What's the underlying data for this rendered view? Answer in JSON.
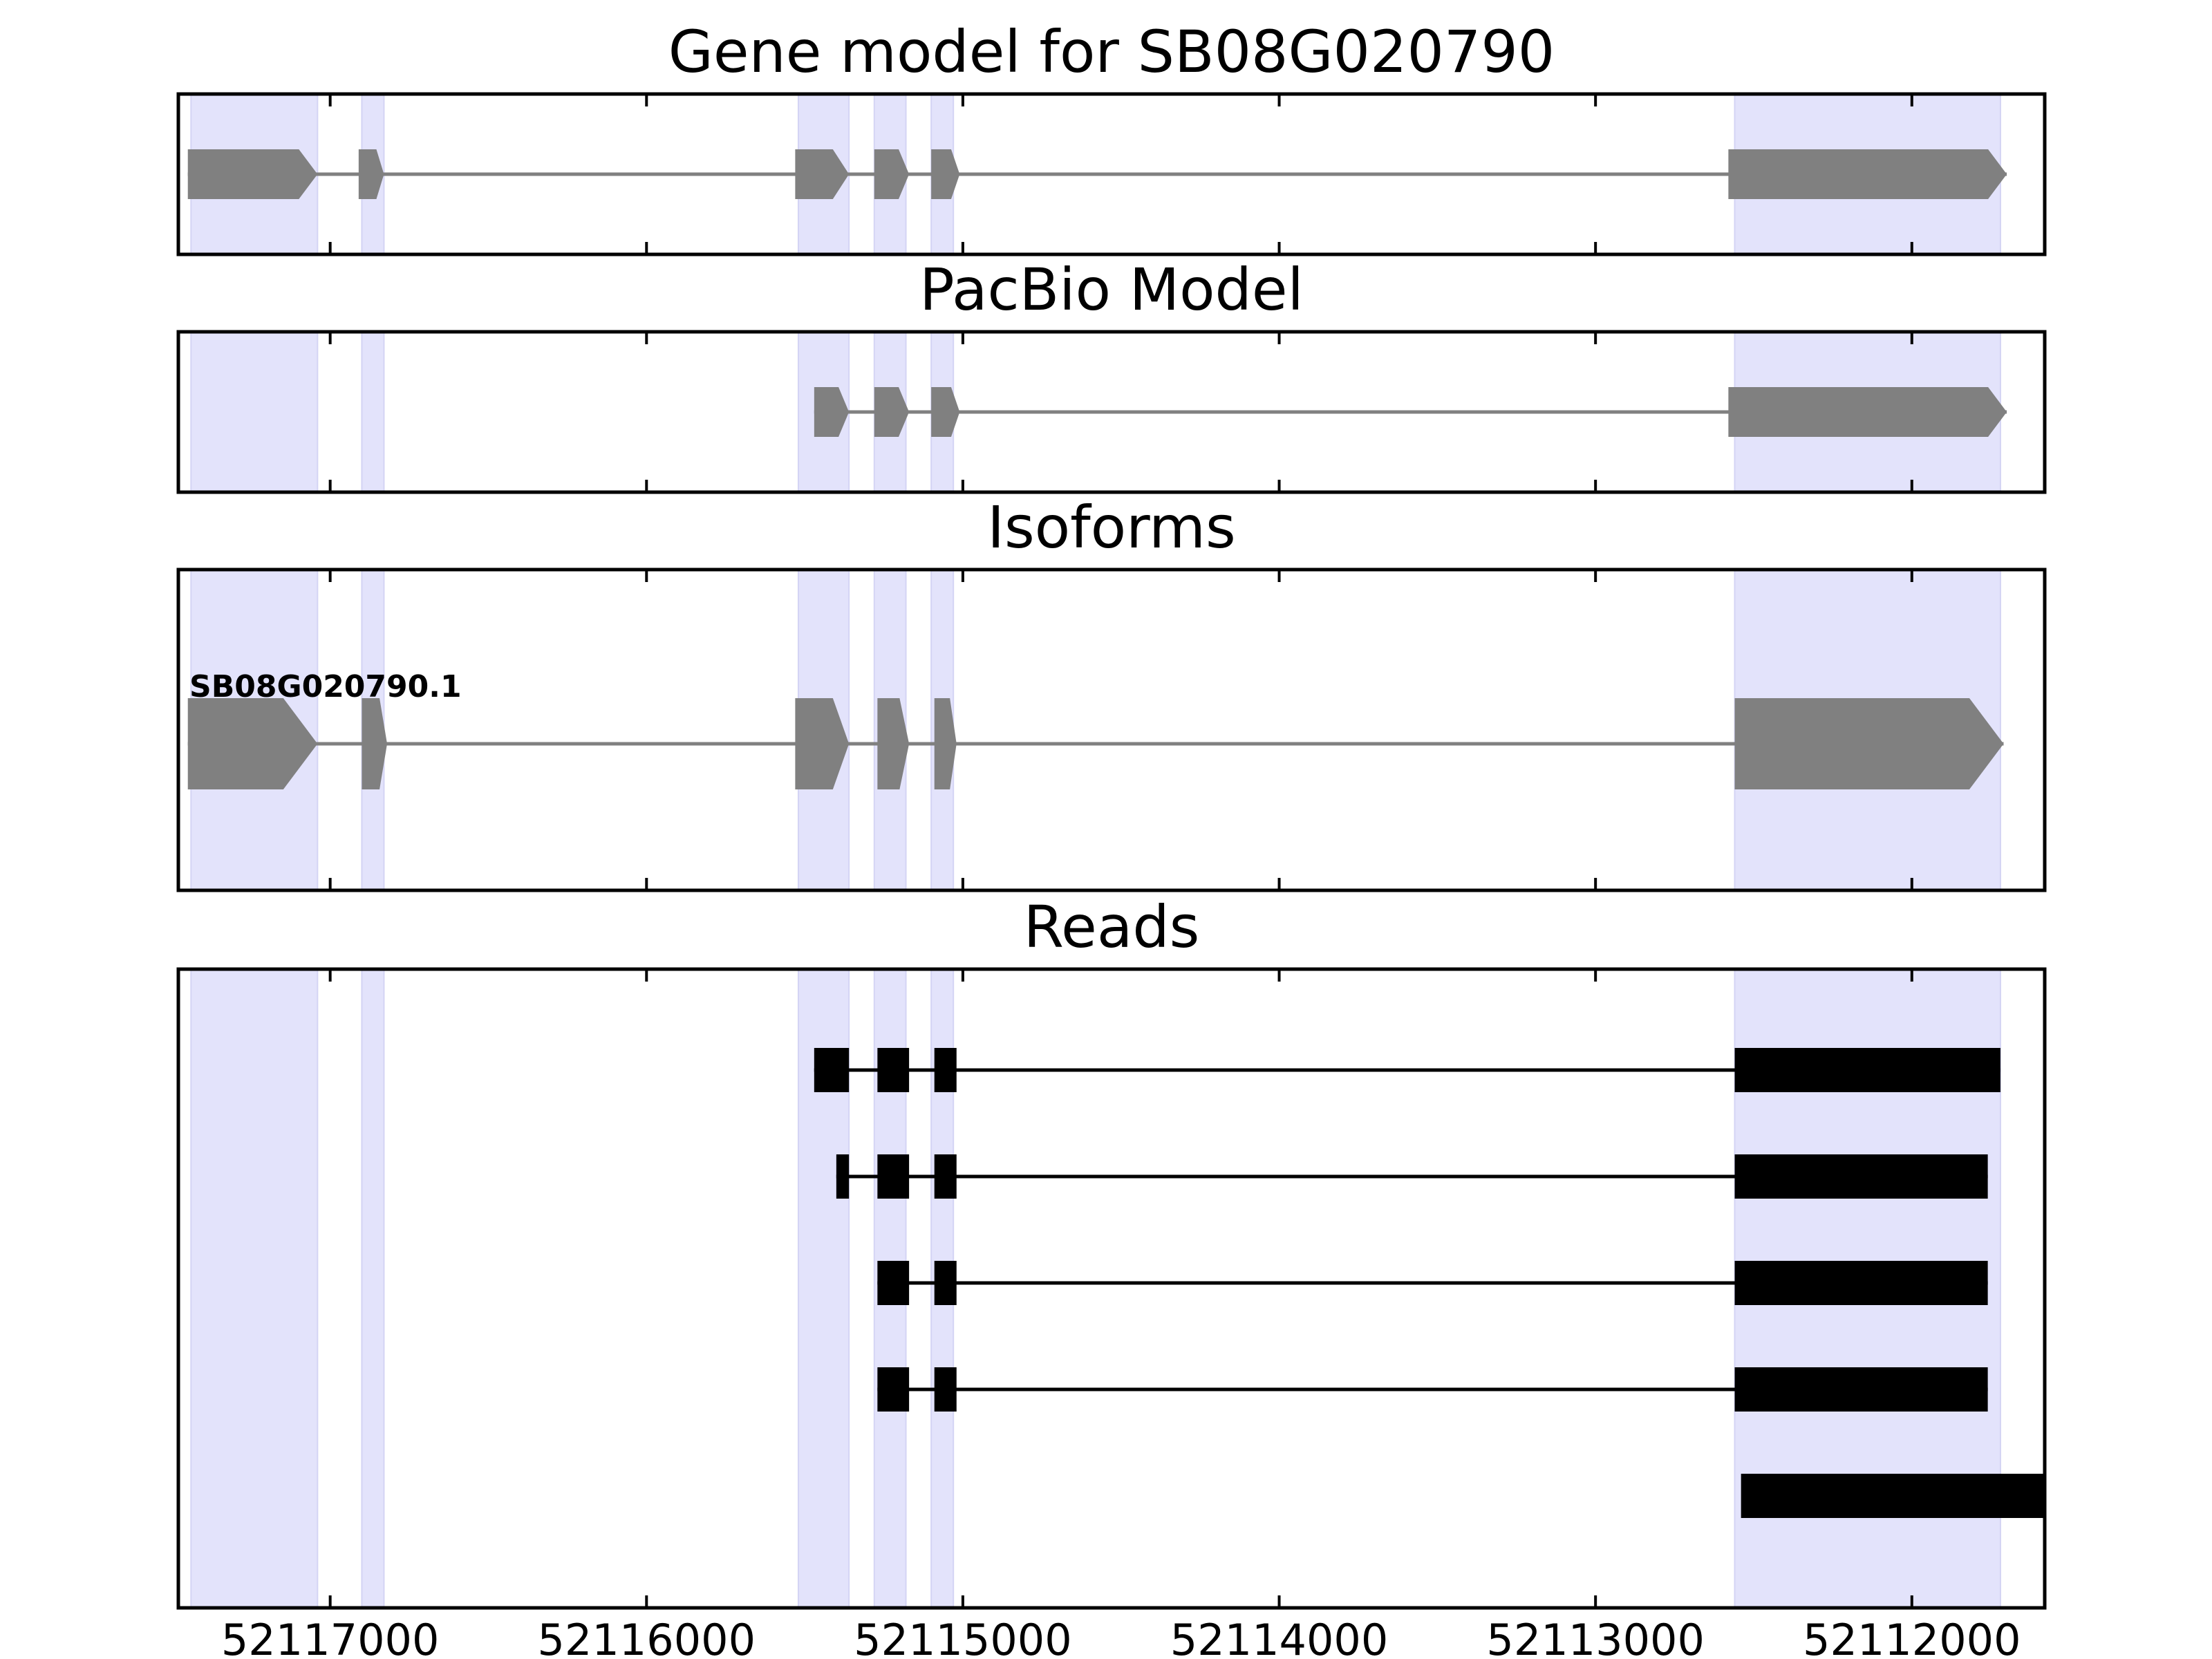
{
  "chart_data": {
    "type": "gene-structure",
    "x_axis": {
      "reversed": true,
      "xlim": [
        52117480,
        52111580
      ],
      "ticks": [
        52117000,
        52116000,
        52115000,
        52114000,
        52113000,
        52112000
      ],
      "tick_labels": [
        "52117000",
        "52116000",
        "52115000",
        "52114000",
        "52113000",
        "52112000"
      ]
    },
    "highlight_regions": [
      [
        52117440,
        52117040
      ],
      [
        52116900,
        52116830
      ],
      [
        52115520,
        52115360
      ],
      [
        52115280,
        52115180
      ],
      [
        52115100,
        52115030
      ],
      [
        52112560,
        52111720
      ]
    ],
    "colors": {
      "highlight": "#e3e3fb",
      "model": "#808080",
      "read": "#000000",
      "frame": "#000000"
    },
    "panels": [
      {
        "id": "gene-model",
        "title": "Gene model for SB08G020790",
        "features": [
          {
            "name": "",
            "strand": "-",
            "exons": [
              [
                52117450,
                52117040
              ],
              [
                52116910,
                52116830
              ],
              [
                52115530,
                52115360
              ],
              [
                52115280,
                52115170
              ],
              [
                52115100,
                52115010
              ],
              [
                52112580,
                52111700
              ]
            ]
          }
        ]
      },
      {
        "id": "pacbio-model",
        "title": "PacBio Model",
        "features": [
          {
            "name": "",
            "strand": "-",
            "exons": [
              [
                52115470,
                52115360
              ],
              [
                52115280,
                52115170
              ],
              [
                52115100,
                52115010
              ],
              [
                52112580,
                52111700
              ]
            ]
          }
        ]
      },
      {
        "id": "isoforms",
        "title": "Isoforms",
        "features": [
          {
            "name": "SB08G020790.1",
            "strand": "-",
            "exons": [
              [
                52117450,
                52117040
              ],
              [
                52116900,
                52116820
              ],
              [
                52115530,
                52115360
              ],
              [
                52115270,
                52115170
              ],
              [
                52115090,
                52115020
              ],
              [
                52112560,
                52111710
              ]
            ]
          }
        ]
      },
      {
        "id": "reads",
        "title": "Reads",
        "reads": [
          {
            "exons": [
              [
                52115470,
                52115360
              ],
              [
                52115270,
                52115170
              ],
              [
                52115090,
                52115020
              ],
              [
                52112560,
                52111720
              ]
            ]
          },
          {
            "exons": [
              [
                52115400,
                52115360
              ],
              [
                52115270,
                52115170
              ],
              [
                52115090,
                52115020
              ],
              [
                52112560,
                52111760
              ]
            ]
          },
          {
            "exons": [
              [
                52115270,
                52115170
              ],
              [
                52115090,
                52115020
              ],
              [
                52112560,
                52111760
              ]
            ]
          },
          {
            "exons": [
              [
                52115270,
                52115170
              ],
              [
                52115090,
                52115020
              ],
              [
                52112560,
                52111760
              ]
            ]
          },
          {
            "exons": [
              [
                52112540,
                52111580
              ]
            ]
          }
        ]
      }
    ]
  }
}
